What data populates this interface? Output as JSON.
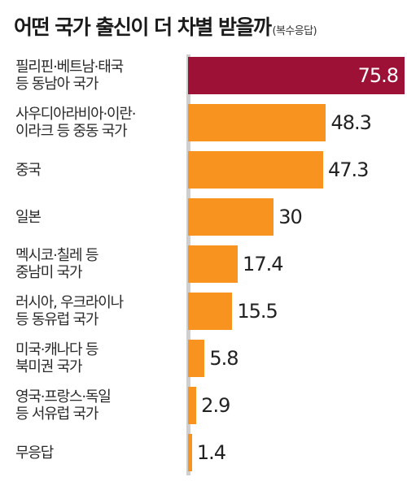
{
  "title": "어떤 국가 출신이 더 차별 받을까",
  "subtitle": "(복수응답)",
  "colors": {
    "highlight": "#9e1137",
    "bar": "#f7931e",
    "axis": "#cfcfcf"
  },
  "chart_data": {
    "type": "bar",
    "orientation": "horizontal",
    "title": "어떤 국가 출신이 더 차별 받을까",
    "subtitle": "(복수응답)",
    "categories": [
      [
        "필리핀·베트남·태국",
        "등 동남아 국가"
      ],
      [
        "사우디아라비아·이란·",
        "이라크 등 중동 국가"
      ],
      [
        "중국"
      ],
      [
        "일본"
      ],
      [
        "멕시코·칠레 등",
        "중남미 국가"
      ],
      [
        "러시아, 우크라이나",
        "등 동유럽 국가"
      ],
      [
        "미국·캐나다 등",
        "북미권 국가"
      ],
      [
        "영국·프랑스·독일",
        "등 서유럽 국가"
      ],
      [
        "무응답"
      ]
    ],
    "values": [
      "75.8",
      "48.3",
      "47.3",
      "30",
      "17.4",
      "15.5",
      "5.8",
      "2.9",
      "1.4"
    ],
    "highlight_index": 0,
    "xlim": [
      0,
      80
    ]
  }
}
